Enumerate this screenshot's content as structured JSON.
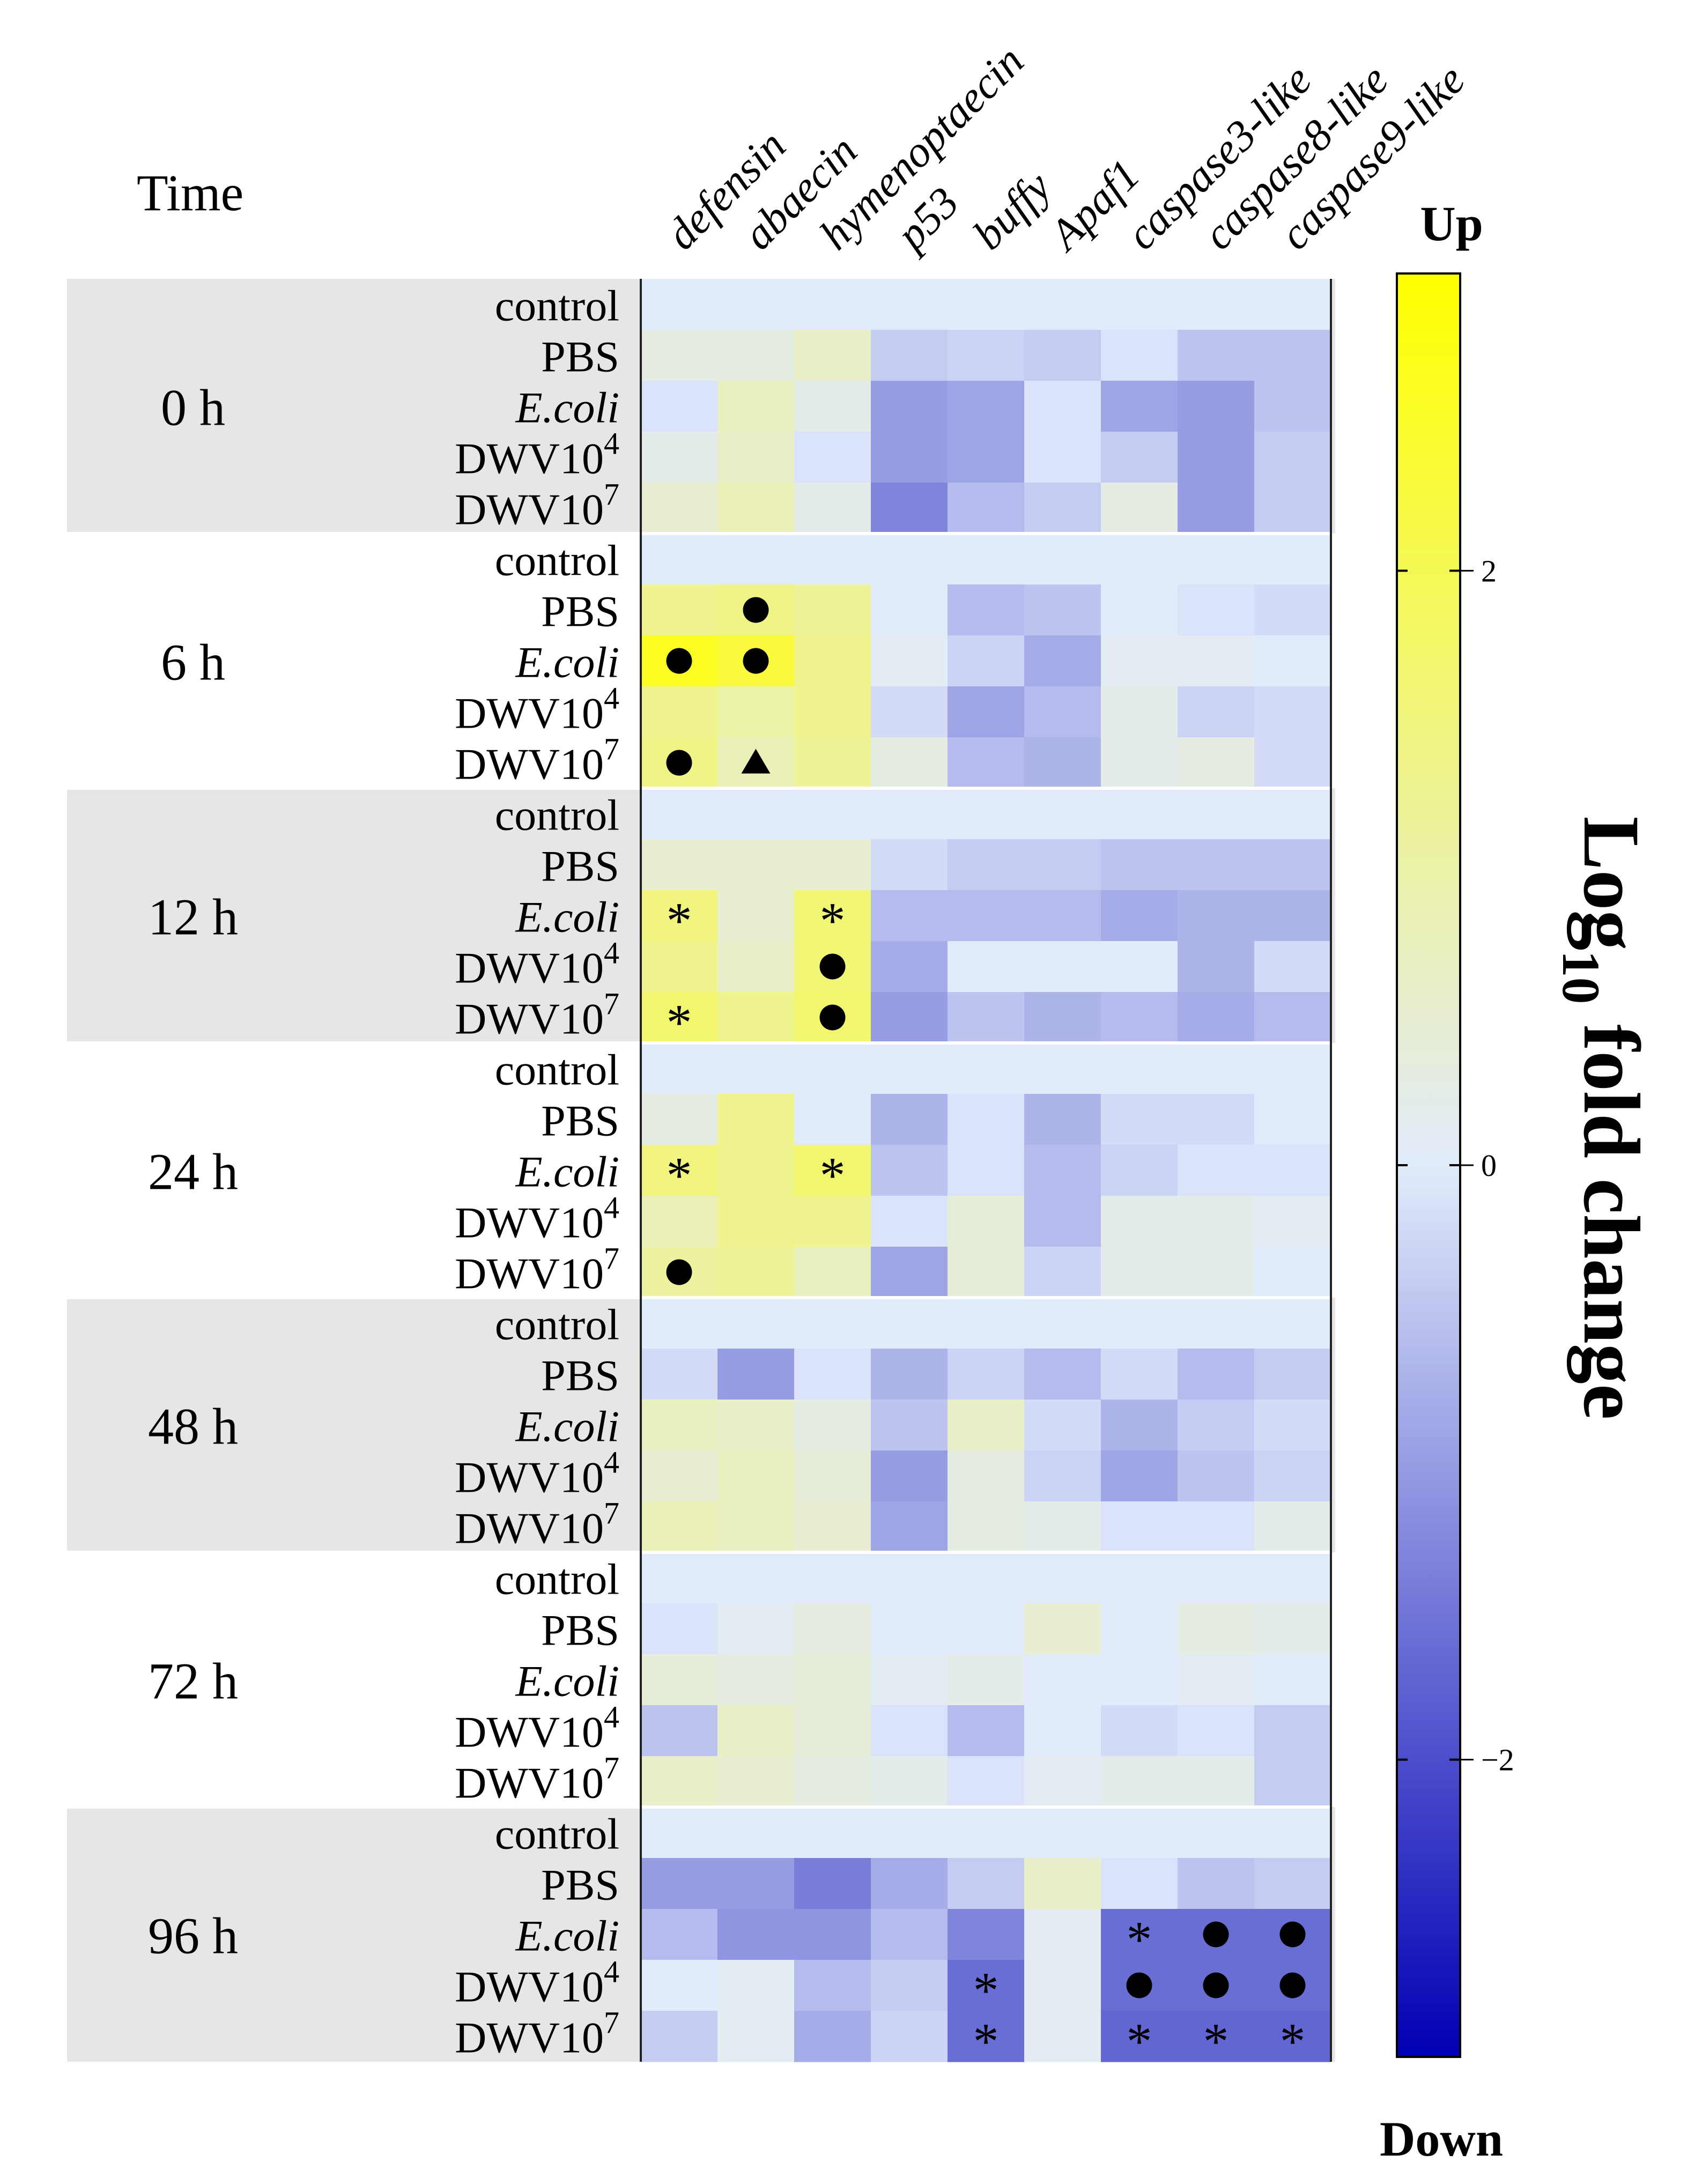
{
  "chart_data": {
    "type": "heatmap",
    "time_header": "Time",
    "genes": [
      "defensin",
      "abaecin",
      "hymenoptaecin",
      "p53",
      "buffy",
      "Apaf1",
      "caspase3-like",
      "caspase8-like",
      "caspase9-like"
    ],
    "treatments": [
      {
        "name": "control",
        "italic": false,
        "exp": ""
      },
      {
        "name": "PBS",
        "italic": false,
        "exp": ""
      },
      {
        "name": "E.coli",
        "italic": true,
        "exp": ""
      },
      {
        "name": "DWV10",
        "italic": false,
        "exp": "4"
      },
      {
        "name": "DWV10",
        "italic": false,
        "exp": "7"
      }
    ],
    "colorbar": {
      "label_main": "Log",
      "label_sub": "10",
      "label_rest": " fold change",
      "top_label": "Up",
      "bottom_label": "Down",
      "ticks": [
        {
          "value": 2,
          "label": "2"
        },
        {
          "value": 0,
          "label": "0"
        },
        {
          "value": -2,
          "label": "−2"
        }
      ],
      "range": [
        -3,
        3
      ],
      "colors": {
        "low": "#0000b4",
        "mid": "#e2ebfb",
        "high": "#ffff00"
      }
    },
    "groups": [
      {
        "time": "0 h",
        "shaded": true,
        "values": [
          [
            0,
            0,
            0,
            0,
            0,
            0,
            0,
            0,
            0
          ],
          [
            0.3,
            0.3,
            0.6,
            -0.4,
            -0.3,
            -0.4,
            -0.1,
            -0.5,
            -0.5
          ],
          [
            -0.1,
            0.7,
            0.2,
            -1.0,
            -0.9,
            -0.1,
            -0.9,
            -1.0,
            -0.5
          ],
          [
            0.2,
            0.6,
            -0.1,
            -1.0,
            -0.9,
            -0.1,
            -0.4,
            -1.0,
            -0.4
          ],
          [
            0.5,
            0.8,
            0.2,
            -1.3,
            -0.6,
            -0.4,
            0.3,
            -1.0,
            -0.4
          ]
        ],
        "marks": [
          [],
          [],
          [],
          [],
          []
        ]
      },
      {
        "time": "6 h",
        "shaded": false,
        "values": [
          [
            0,
            0,
            0,
            0,
            0,
            0,
            0,
            0,
            0
          ],
          [
            1.3,
            1.4,
            1.2,
            0,
            -0.6,
            -0.5,
            0,
            -0.1,
            -0.2
          ],
          [
            2.6,
            2.3,
            1.3,
            0.1,
            -0.3,
            -0.8,
            0.1,
            0.1,
            0
          ],
          [
            1.3,
            1.0,
            1.3,
            -0.2,
            -0.9,
            -0.6,
            0.2,
            -0.3,
            -0.2
          ],
          [
            1.4,
            0.8,
            1.2,
            0.3,
            -0.6,
            -0.7,
            0.2,
            0.3,
            -0.2
          ]
        ],
        "marks": [
          [
            "",
            "",
            "",
            "",
            "",
            "",
            "",
            "",
            ""
          ],
          [
            "",
            "dot",
            "",
            "",
            "",
            "",
            "",
            "",
            ""
          ],
          [
            "dot",
            "dot",
            "",
            "",
            "",
            "",
            "",
            "",
            ""
          ],
          [
            "",
            "",
            "",
            "",
            "",
            "",
            "",
            "",
            ""
          ],
          [
            "dot",
            "tri",
            "",
            "",
            "",
            "",
            "",
            "",
            ""
          ]
        ]
      },
      {
        "time": "12 h",
        "shaded": true,
        "values": [
          [
            0,
            0,
            0,
            0,
            0,
            0,
            0,
            0,
            0
          ],
          [
            0.5,
            0.5,
            0.5,
            -0.2,
            -0.4,
            -0.4,
            -0.5,
            -0.5,
            -0.5
          ],
          [
            1.5,
            0.5,
            1.6,
            -0.6,
            -0.6,
            -0.6,
            -0.8,
            -0.7,
            -0.7
          ],
          [
            1.3,
            0.6,
            1.6,
            -0.8,
            0,
            0,
            0,
            -0.7,
            -0.2
          ],
          [
            1.7,
            1.3,
            1.7,
            -1.0,
            -0.5,
            -0.7,
            -0.6,
            -0.8,
            -0.6
          ]
        ],
        "marks": [
          [
            "",
            "",
            "",
            "",
            "",
            "",
            "",
            "",
            ""
          ],
          [
            "",
            "",
            "",
            "",
            "",
            "",
            "",
            "",
            ""
          ],
          [
            "star",
            "",
            "star",
            "",
            "",
            "",
            "",
            "",
            ""
          ],
          [
            "",
            "",
            "dot",
            "",
            "",
            "",
            "",
            "",
            ""
          ],
          [
            "star",
            "",
            "dot",
            "",
            "",
            "",
            "",
            "",
            ""
          ]
        ]
      },
      {
        "time": "24 h",
        "shaded": false,
        "values": [
          [
            0,
            0,
            0,
            0,
            0,
            0,
            0,
            0,
            0
          ],
          [
            0.3,
            1.3,
            0,
            -0.7,
            -0.1,
            -0.7,
            -0.2,
            -0.2,
            0
          ],
          [
            1.5,
            1.3,
            1.7,
            -0.5,
            -0.1,
            -0.6,
            -0.3,
            -0.1,
            -0.1
          ],
          [
            0.8,
            1.3,
            1.3,
            -0.1,
            0.4,
            -0.6,
            0.2,
            0.2,
            0.1
          ],
          [
            1.1,
            1.2,
            0.7,
            -0.9,
            0.4,
            -0.3,
            0.2,
            0.2,
            0
          ]
        ],
        "marks": [
          [
            "",
            "",
            "",
            "",
            "",
            "",
            "",
            "",
            ""
          ],
          [
            "",
            "",
            "",
            "",
            "",
            "",
            "",
            "",
            ""
          ],
          [
            "star",
            "",
            "star",
            "",
            "",
            "",
            "",
            "",
            ""
          ],
          [
            "",
            "",
            "",
            "",
            "",
            "",
            "",
            "",
            ""
          ],
          [
            "dot",
            "",
            "",
            "",
            "",
            "",
            "",
            "",
            ""
          ]
        ]
      },
      {
        "time": "48 h",
        "shaded": true,
        "values": [
          [
            0,
            0,
            0,
            0,
            0,
            0,
            0,
            0,
            0
          ],
          [
            -0.2,
            -1.0,
            -0.1,
            -0.7,
            -0.3,
            -0.6,
            -0.2,
            -0.6,
            -0.4
          ],
          [
            0.7,
            0.6,
            0.3,
            -0.5,
            0.6,
            -0.2,
            -0.7,
            -0.4,
            -0.2
          ],
          [
            0.5,
            0.7,
            0.4,
            -1.0,
            0.3,
            -0.3,
            -0.9,
            -0.5,
            -0.3
          ],
          [
            0.8,
            0.7,
            0.5,
            -0.9,
            0.3,
            0.2,
            -0.1,
            -0.1,
            0.2
          ]
        ],
        "marks": [
          [],
          [],
          [],
          [],
          []
        ]
      },
      {
        "time": "72 h",
        "shaded": false,
        "values": [
          [
            0,
            0,
            0,
            0,
            0,
            0,
            0,
            0,
            0
          ],
          [
            -0.1,
            0.1,
            0.3,
            0,
            0,
            0.5,
            0,
            0.3,
            0.2
          ],
          [
            0.4,
            0.3,
            0.4,
            0.1,
            0.2,
            0,
            0,
            0.1,
            0
          ],
          [
            -0.5,
            0.6,
            0.4,
            -0.1,
            -0.6,
            0,
            -0.2,
            -0.1,
            -0.4
          ],
          [
            0.6,
            0.5,
            0.3,
            0.2,
            -0.1,
            0.1,
            0.2,
            0.2,
            -0.4
          ]
        ],
        "marks": [
          [],
          [],
          [],
          [],
          []
        ]
      },
      {
        "time": "96 h",
        "shaded": true,
        "values": [
          [
            0,
            0,
            0,
            0,
            0,
            0,
            0,
            0,
            0
          ],
          [
            -1.0,
            -1.0,
            -1.4,
            -0.8,
            -0.4,
            0.6,
            -0.1,
            -0.5,
            -0.4
          ],
          [
            -0.6,
            -1.1,
            -1.1,
            -0.6,
            -1.3,
            0.1,
            -1.6,
            -1.6,
            -1.6
          ],
          [
            0,
            0.1,
            -0.6,
            -0.4,
            -1.6,
            0.1,
            -1.6,
            -1.6,
            -1.6
          ],
          [
            -0.4,
            0.1,
            -0.8,
            -0.3,
            -1.6,
            0.1,
            -1.7,
            -1.7,
            -1.7
          ]
        ],
        "marks": [
          [
            "",
            "",
            "",
            "",
            "",
            "",
            "",
            "",
            ""
          ],
          [
            "",
            "",
            "",
            "",
            "",
            "",
            "",
            "",
            ""
          ],
          [
            "",
            "",
            "",
            "",
            "",
            "",
            "star",
            "dot",
            "dot"
          ],
          [
            "",
            "",
            "",
            "",
            "star",
            "",
            "dot",
            "dot",
            "dot"
          ],
          [
            "",
            "",
            "",
            "",
            "star",
            "",
            "star",
            "star",
            "star"
          ]
        ]
      }
    ]
  }
}
